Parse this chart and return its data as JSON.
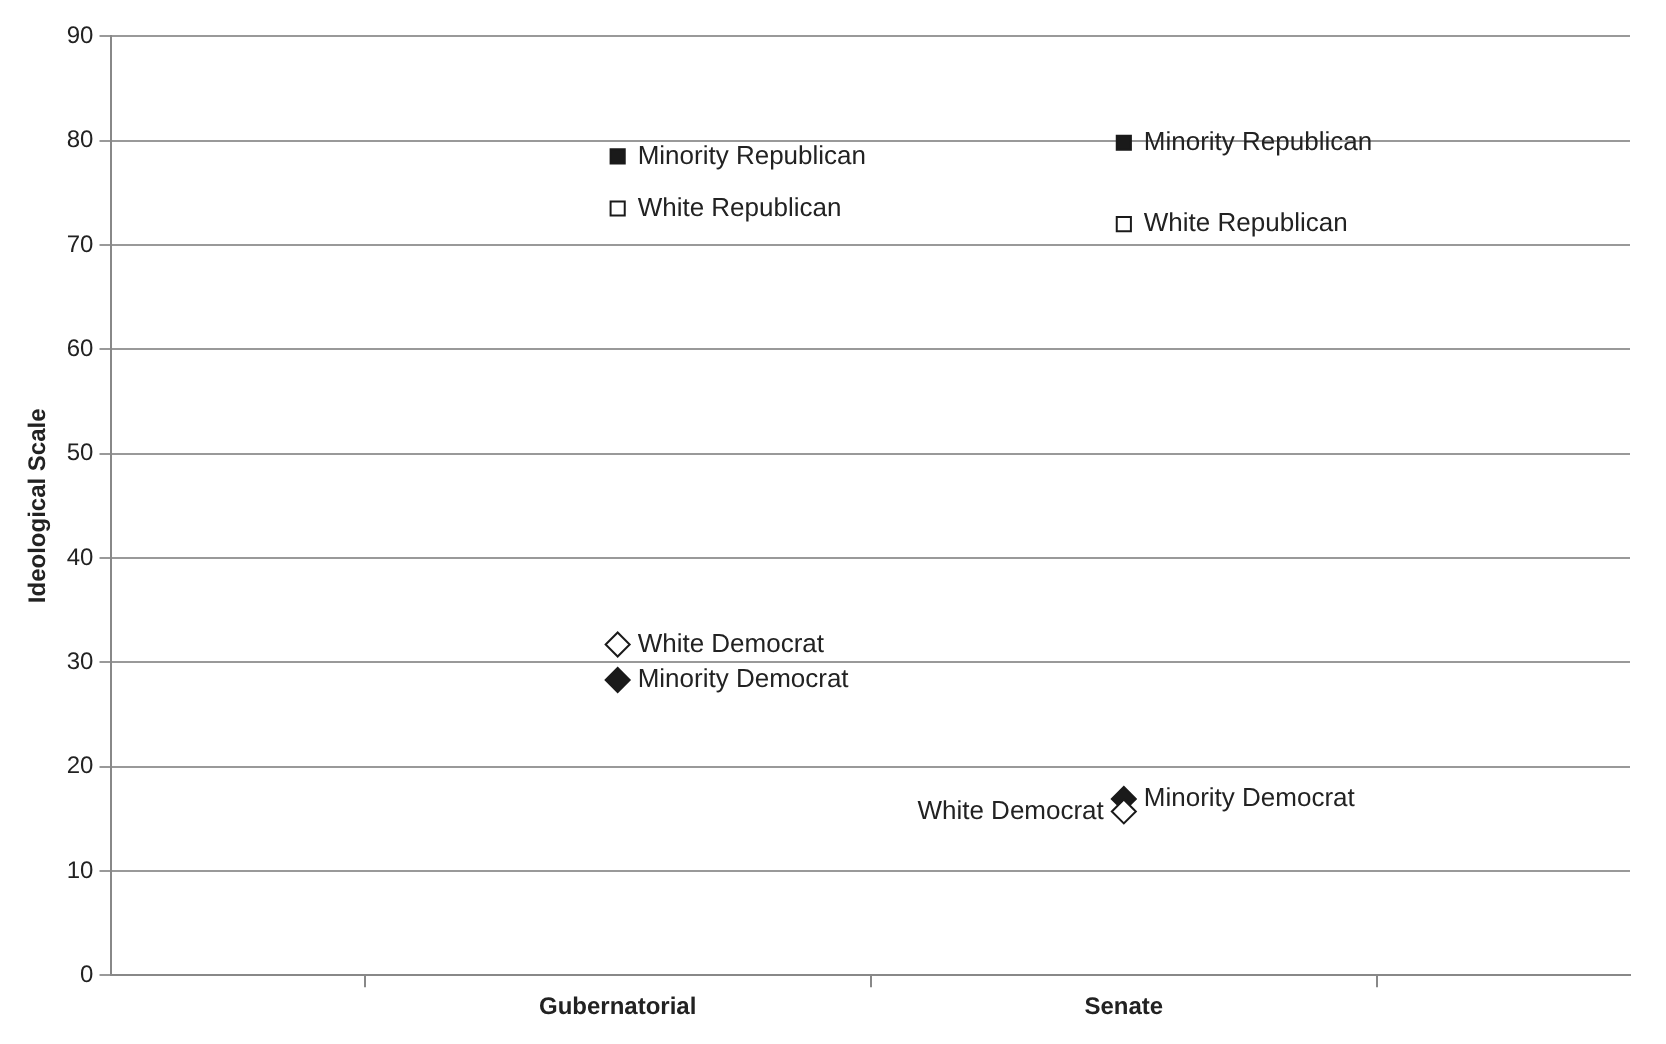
{
  "chart_data": {
    "type": "scatter",
    "ylabel": "Ideological Scale",
    "categories": [
      null,
      "Gubernatorial",
      "Senate",
      null
    ],
    "series": [
      {
        "name": "Minority Republican",
        "color": "#1a1a1a",
        "marker": "square",
        "values": [
          null,
          78.5,
          79.8,
          null
        ]
      },
      {
        "name": "White Republican",
        "color": "#ffffff",
        "marker": "square",
        "values": [
          null,
          73.5,
          72,
          null
        ]
      },
      {
        "name": "White Democrat",
        "color": "#ffffff",
        "marker": "diamond",
        "values": [
          null,
          31.7,
          15.7,
          null
        ]
      },
      {
        "name": "Minority Democrat",
        "color": "#1a1a1a",
        "marker": "diamond",
        "values": [
          null,
          28.3,
          16.9,
          null
        ]
      }
    ],
    "ylim": [
      0,
      90
    ],
    "yticks": [
      0,
      10,
      20,
      30,
      40,
      50,
      60,
      70,
      80,
      90
    ],
    "grid": "y",
    "legend": false
  }
}
